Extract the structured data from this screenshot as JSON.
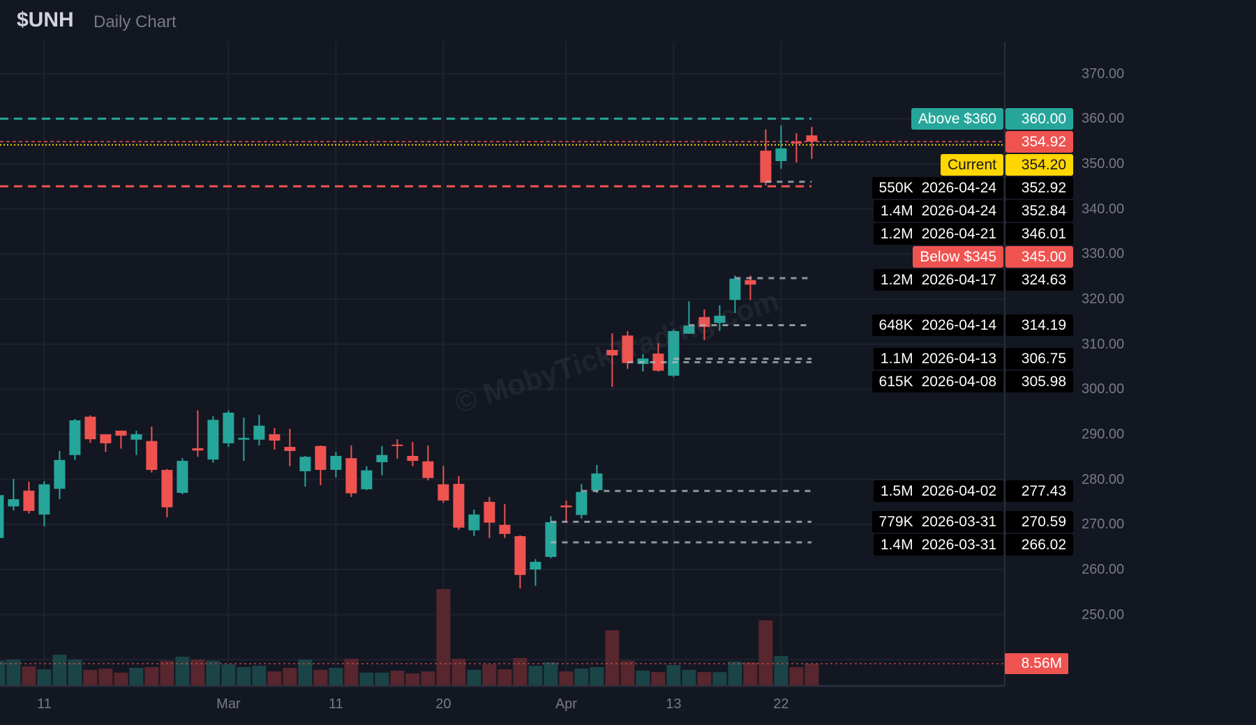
{
  "header": {
    "symbol": "$UNH",
    "subtitle": "Daily Chart"
  },
  "watermark": "© MobyTickTrading.com",
  "colors": {
    "up": "#26a69a",
    "down": "#ef5350",
    "current": "#ffd600",
    "marker_line": "#b2b5be",
    "background": "#131722",
    "grid": "#1e222d"
  },
  "chart_data": {
    "type": "candlestick",
    "title": "$UNH Daily Chart",
    "ylim": [
      240,
      375
    ],
    "grid": true,
    "y_ticks": [
      {
        "value": 370,
        "label": "370.00"
      },
      {
        "value": 360,
        "label": "360.00"
      },
      {
        "value": 350,
        "label": "350.00"
      },
      {
        "value": 340,
        "label": "340.00"
      },
      {
        "value": 330,
        "label": "330.00"
      },
      {
        "value": 320,
        "label": "320.00"
      },
      {
        "value": 310,
        "label": "310.00"
      },
      {
        "value": 300,
        "label": "300.00"
      },
      {
        "value": 290,
        "label": "290.00"
      },
      {
        "value": 280,
        "label": "280.00"
      },
      {
        "value": 270,
        "label": "270.00"
      },
      {
        "value": 260,
        "label": "260.00"
      },
      {
        "value": 250,
        "label": "250.00"
      }
    ],
    "x_ticks": [
      {
        "label": "11",
        "date": "2026-02-11"
      },
      {
        "label": "Mar",
        "date": "2026-03-02"
      },
      {
        "label": "11",
        "date": "2026-03-11"
      },
      {
        "label": "20",
        "date": "2026-03-20"
      },
      {
        "label": "Apr",
        "date": "2026-04-01"
      },
      {
        "label": "13",
        "date": "2026-04-13"
      },
      {
        "label": "22",
        "date": "2026-04-22"
      }
    ],
    "dates": [
      "2026-02-06",
      "2026-02-09",
      "2026-02-10",
      "2026-02-11",
      "2026-02-12",
      "2026-02-13",
      "2026-02-17",
      "2026-02-18",
      "2026-02-19",
      "2026-02-20",
      "2026-02-23",
      "2026-02-24",
      "2026-02-25",
      "2026-02-26",
      "2026-02-27",
      "2026-03-02",
      "2026-03-03",
      "2026-03-04",
      "2026-03-05",
      "2026-03-06",
      "2026-03-09",
      "2026-03-10",
      "2026-03-11",
      "2026-03-12",
      "2026-03-13",
      "2026-03-16",
      "2026-03-17",
      "2026-03-18",
      "2026-03-19",
      "2026-03-20",
      "2026-03-23",
      "2026-03-24",
      "2026-03-25",
      "2026-03-26",
      "2026-03-27",
      "2026-03-30",
      "2026-03-31",
      "2026-04-01",
      "2026-04-02",
      "2026-04-06",
      "2026-04-07",
      "2026-04-08",
      "2026-04-09",
      "2026-04-10",
      "2026-04-13",
      "2026-04-14",
      "2026-04-15",
      "2026-04-16",
      "2026-04-17",
      "2026-04-20",
      "2026-04-21",
      "2026-04-22",
      "2026-04-23",
      "2026-04-24"
    ],
    "ohlc": [
      [
        267.0,
        277.0,
        266.0,
        276.5
      ],
      [
        274.0,
        280.1,
        273.1,
        275.6
      ],
      [
        277.5,
        279.5,
        272.4,
        273.0
      ],
      [
        272.2,
        279.6,
        269.6,
        278.9
      ],
      [
        277.9,
        286.3,
        275.6,
        284.3
      ],
      [
        285.4,
        293.4,
        284.3,
        293.1
      ],
      [
        293.9,
        294.2,
        288.1,
        288.9
      ],
      [
        290.0,
        290.0,
        286.1,
        288.0
      ],
      [
        290.8,
        290.8,
        286.8,
        289.7
      ],
      [
        288.8,
        290.8,
        285.4,
        290.0
      ],
      [
        288.5,
        291.7,
        281.5,
        282.1
      ],
      [
        282.1,
        282.3,
        271.6,
        273.8
      ],
      [
        277.0,
        284.7,
        276.7,
        284.1
      ],
      [
        286.9,
        295.3,
        285.0,
        286.4
      ],
      [
        284.4,
        294.0,
        283.7,
        293.2
      ],
      [
        288.0,
        295.3,
        287.2,
        294.8
      ],
      [
        288.8,
        293.7,
        284.1,
        289.2
      ],
      [
        288.8,
        294.3,
        287.5,
        291.9
      ],
      [
        290.0,
        291.4,
        286.6,
        288.6
      ],
      [
        287.2,
        291.2,
        282.9,
        286.3
      ],
      [
        281.8,
        285.2,
        278.4,
        285.0
      ],
      [
        287.4,
        287.5,
        278.7,
        282.1
      ],
      [
        282.1,
        286.1,
        280.4,
        285.2
      ],
      [
        284.7,
        287.5,
        276.1,
        276.9
      ],
      [
        277.8,
        282.9,
        277.6,
        282.0
      ],
      [
        283.8,
        287.4,
        280.9,
        285.4
      ],
      [
        287.7,
        288.9,
        284.6,
        287.4
      ],
      [
        285.2,
        288.3,
        282.9,
        284.1
      ],
      [
        284.0,
        287.5,
        279.8,
        280.3
      ],
      [
        278.9,
        283.0,
        274.8,
        275.3
      ],
      [
        279.0,
        280.7,
        268.8,
        269.3
      ],
      [
        268.7,
        273.3,
        267.4,
        272.2
      ],
      [
        275.0,
        276.1,
        267.0,
        270.4
      ],
      [
        269.9,
        274.5,
        267.0,
        267.9
      ],
      [
        267.4,
        267.6,
        255.8,
        258.8
      ],
      [
        260.0,
        262.3,
        256.4,
        261.7
      ],
      [
        262.8,
        271.8,
        262.5,
        270.5
      ],
      [
        274.2,
        275.3,
        270.5,
        273.8
      ],
      [
        272.1,
        279.0,
        271.3,
        277.2
      ],
      [
        277.6,
        283.2,
        277.0,
        281.3
      ],
      [
        308.7,
        312.4,
        300.5,
        307.5
      ],
      [
        311.9,
        312.9,
        304.5,
        305.8
      ],
      [
        305.6,
        307.8,
        303.9,
        306.8
      ],
      [
        307.9,
        310.2,
        303.9,
        304.1
      ],
      [
        303.0,
        313.2,
        302.7,
        312.9
      ],
      [
        312.3,
        319.5,
        312.3,
        314.1
      ],
      [
        316.0,
        317.7,
        310.9,
        313.8
      ],
      [
        314.7,
        318.6,
        312.9,
        316.3
      ],
      [
        319.8,
        325.2,
        316.9,
        324.5
      ],
      [
        324.2,
        325.2,
        319.8,
        323.2
      ],
      [
        352.9,
        357.6,
        345.2,
        345.8
      ],
      [
        350.6,
        358.5,
        348.9,
        353.4
      ],
      [
        354.8,
        356.8,
        350.3,
        354.5
      ],
      [
        356.3,
        358.2,
        351.1,
        354.92
      ]
    ],
    "volume_millions": [
      9.7,
      10.2,
      7.5,
      6.3,
      12.1,
      10.2,
      6.1,
      6.6,
      5.0,
      6.9,
      7.2,
      9.7,
      11.3,
      10.2,
      9.7,
      8.3,
      7.2,
      7.7,
      5.5,
      6.9,
      10.2,
      6.1,
      6.9,
      10.5,
      5.0,
      5.0,
      5.8,
      4.7,
      5.5,
      38.1,
      10.5,
      6.1,
      8.3,
      6.3,
      10.8,
      7.7,
      9.1,
      5.5,
      6.6,
      7.2,
      21.8,
      9.7,
      5.8,
      5.2,
      8.0,
      6.1,
      5.2,
      5.2,
      9.4,
      9.1,
      25.7,
      11.6,
      7.2,
      8.56
    ]
  },
  "levels": {
    "alerts": [
      {
        "label": "Above $360",
        "price": "360.00",
        "value": 360.0,
        "kind": "above"
      },
      {
        "label": "Below $345",
        "price": "345.00",
        "value": 345.0,
        "kind": "below"
      }
    ],
    "last_price": {
      "price": "354.92",
      "value": 354.92
    },
    "current": {
      "label": "Current",
      "price": "354.20",
      "value": 354.2
    },
    "markers": [
      {
        "volume": "550K",
        "date": "2026-04-24",
        "price": "352.92",
        "value": 352.92
      },
      {
        "volume": "1.4M",
        "date": "2026-04-24",
        "price": "352.84",
        "value": 352.84
      },
      {
        "volume": "1.2M",
        "date": "2026-04-21",
        "price": "346.01",
        "value": 346.01
      },
      {
        "volume": "1.2M",
        "date": "2026-04-17",
        "price": "324.63",
        "value": 324.63
      },
      {
        "volume": "648K",
        "date": "2026-04-14",
        "price": "314.19",
        "value": 314.19
      },
      {
        "volume": "1.1M",
        "date": "2026-04-13",
        "price": "306.75",
        "value": 306.75
      },
      {
        "volume": "615K",
        "date": "2026-04-08",
        "price": "305.98",
        "value": 305.98
      },
      {
        "volume": "1.5M",
        "date": "2026-04-02",
        "price": "277.43",
        "value": 277.43
      },
      {
        "volume": "779K",
        "date": "2026-03-31",
        "price": "270.59",
        "value": 270.59
      },
      {
        "volume": "1.4M",
        "date": "2026-03-31",
        "price": "266.02",
        "value": 266.02
      }
    ],
    "volume_label": "8.56M"
  }
}
